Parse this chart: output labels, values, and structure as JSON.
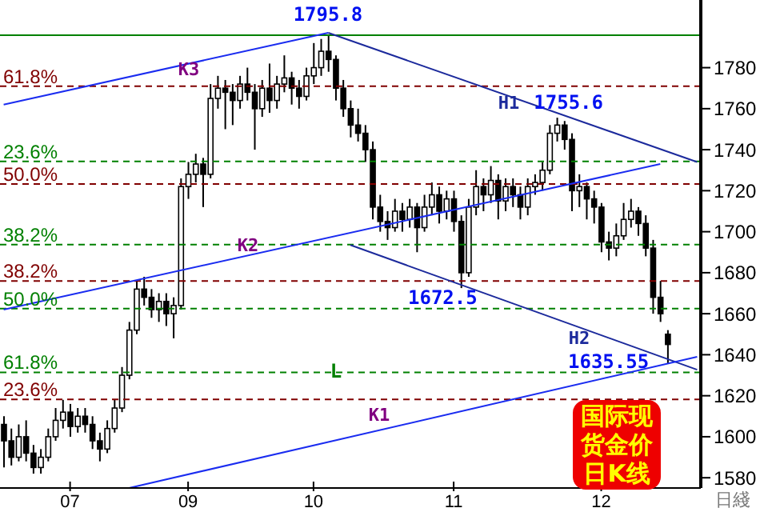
{
  "chart_data": {
    "type": "candlestick",
    "xlabel": "日綫",
    "categories": [
      null,
      null,
      null,
      null,
      null,
      null,
      null,
      null,
      null,
      "07",
      null,
      null,
      null,
      null,
      null,
      null,
      null,
      null,
      null,
      null,
      null,
      null,
      null,
      null,
      null,
      "09",
      null,
      null,
      null,
      null,
      null,
      null,
      null,
      null,
      null,
      null,
      null,
      null,
      null,
      null,
      null,
      null,
      "10",
      null,
      null,
      null,
      null,
      null,
      null,
      null,
      null,
      null,
      null,
      null,
      null,
      null,
      null,
      null,
      null,
      null,
      null,
      "11",
      null,
      null,
      null,
      null,
      null,
      null,
      null,
      null,
      null,
      null,
      null,
      null,
      null,
      null,
      null,
      null,
      null,
      null,
      null,
      "12",
      null,
      null,
      null,
      null,
      null,
      null,
      null,
      null,
      null,
      null,
      null,
      null,
      null
    ],
    "ohlc": [
      [
        1606,
        1610,
        1585,
        1598
      ],
      [
        1598,
        1604,
        1586,
        1590
      ],
      [
        1590,
        1606,
        1588,
        1600
      ],
      [
        1600,
        1608,
        1588,
        1592
      ],
      [
        1592,
        1596,
        1582,
        1585
      ],
      [
        1585,
        1594,
        1582,
        1590
      ],
      [
        1590,
        1604,
        1588,
        1600
      ],
      [
        1600,
        1614,
        1598,
        1608
      ],
      [
        1608,
        1618,
        1604,
        1612
      ],
      [
        1612,
        1616,
        1600,
        1605
      ],
      [
        1605,
        1614,
        1602,
        1610
      ],
      [
        1610,
        1614,
        1602,
        1606
      ],
      [
        1606,
        1610,
        1594,
        1598
      ],
      [
        1598,
        1602,
        1588,
        1594
      ],
      [
        1594,
        1608,
        1592,
        1604
      ],
      [
        1604,
        1618,
        1602,
        1614
      ],
      [
        1614,
        1634,
        1612,
        1630
      ],
      [
        1630,
        1656,
        1628,
        1652
      ],
      [
        1652,
        1676,
        1650,
        1672
      ],
      [
        1672,
        1678,
        1664,
        1668
      ],
      [
        1668,
        1672,
        1658,
        1662
      ],
      [
        1662,
        1670,
        1656,
        1666
      ],
      [
        1666,
        1670,
        1654,
        1660
      ],
      [
        1660,
        1668,
        1648,
        1664
      ],
      [
        1664,
        1726,
        1662,
        1722
      ],
      [
        1722,
        1734,
        1716,
        1728
      ],
      [
        1728,
        1738,
        1724,
        1733
      ],
      [
        1733,
        1736,
        1712,
        1728
      ],
      [
        1728,
        1772,
        1726,
        1765
      ],
      [
        1765,
        1776,
        1760,
        1770
      ],
      [
        1770,
        1774,
        1750,
        1768
      ],
      [
        1768,
        1772,
        1752,
        1764
      ],
      [
        1764,
        1776,
        1760,
        1772
      ],
      [
        1772,
        1780,
        1764,
        1768
      ],
      [
        1768,
        1772,
        1740,
        1760
      ],
      [
        1760,
        1774,
        1756,
        1770
      ],
      [
        1770,
        1782,
        1758,
        1764
      ],
      [
        1764,
        1776,
        1760,
        1772
      ],
      [
        1772,
        1786,
        1768,
        1775
      ],
      [
        1775,
        1778,
        1762,
        1770
      ],
      [
        1770,
        1774,
        1760,
        1766
      ],
      [
        1766,
        1780,
        1764,
        1776
      ],
      [
        1776,
        1792,
        1772,
        1780
      ],
      [
        1780,
        1794,
        1776,
        1788
      ],
      [
        1788,
        1795.8,
        1778,
        1784
      ],
      [
        1784,
        1786,
        1764,
        1770
      ],
      [
        1770,
        1774,
        1756,
        1760
      ],
      [
        1760,
        1764,
        1746,
        1752
      ],
      [
        1752,
        1760,
        1744,
        1748
      ],
      [
        1748,
        1752,
        1734,
        1740
      ],
      [
        1740,
        1744,
        1706,
        1712
      ],
      [
        1712,
        1718,
        1700,
        1705
      ],
      [
        1705,
        1710,
        1696,
        1702
      ],
      [
        1702,
        1716,
        1700,
        1710
      ],
      [
        1710,
        1714,
        1700,
        1706
      ],
      [
        1706,
        1716,
        1702,
        1712
      ],
      [
        1712,
        1714,
        1690,
        1702
      ],
      [
        1702,
        1718,
        1700,
        1712
      ],
      [
        1712,
        1724,
        1708,
        1718
      ],
      [
        1718,
        1722,
        1704,
        1710
      ],
      [
        1710,
        1720,
        1706,
        1716
      ],
      [
        1716,
        1720,
        1700,
        1705
      ],
      [
        1705,
        1708,
        1672.5,
        1680
      ],
      [
        1680,
        1716,
        1678,
        1712
      ],
      [
        1712,
        1730,
        1708,
        1722
      ],
      [
        1722,
        1726,
        1710,
        1718
      ],
      [
        1718,
        1732,
        1714,
        1725
      ],
      [
        1725,
        1728,
        1706,
        1715
      ],
      [
        1715,
        1726,
        1710,
        1722
      ],
      [
        1722,
        1726,
        1712,
        1718
      ],
      [
        1718,
        1722,
        1706,
        1712
      ],
      [
        1712,
        1726,
        1708,
        1722
      ],
      [
        1722,
        1728,
        1718,
        1724
      ],
      [
        1724,
        1734,
        1720,
        1730
      ],
      [
        1730,
        1752,
        1728,
        1748
      ],
      [
        1748,
        1755.6,
        1744,
        1752
      ],
      [
        1752,
        1754,
        1740,
        1745
      ],
      [
        1745,
        1748,
        1710,
        1720
      ],
      [
        1720,
        1728,
        1712,
        1722
      ],
      [
        1722,
        1724,
        1706,
        1716
      ],
      [
        1716,
        1720,
        1704,
        1712
      ],
      [
        1712,
        1714,
        1690,
        1695
      ],
      [
        1695,
        1700,
        1686,
        1692
      ],
      [
        1692,
        1704,
        1688,
        1698
      ],
      [
        1698,
        1714,
        1696,
        1706
      ],
      [
        1706,
        1716,
        1702,
        1710
      ],
      [
        1710,
        1712,
        1698,
        1704
      ],
      [
        1704,
        1708,
        1688,
        1692
      ],
      [
        1692,
        1696,
        1660,
        1668
      ],
      [
        1668,
        1676,
        1656,
        1660
      ],
      [
        1650,
        1652,
        1635.55,
        1645
      ],
      null,
      null,
      null,
      null
    ],
    "series": [
      {
        "name": "K3",
        "type": "line",
        "color": "#1a2cf0",
        "values": [
          1762,
          null,
          null,
          null,
          null,
          null,
          null,
          null,
          null,
          null,
          null,
          null,
          null,
          null,
          null,
          null,
          null,
          null,
          null,
          null,
          null,
          null,
          null,
          null,
          null,
          null,
          null,
          null,
          null,
          null,
          null,
          null,
          null,
          null,
          null,
          null,
          null,
          null,
          null,
          null,
          null,
          null,
          null,
          null,
          1797,
          null,
          null,
          null,
          null,
          null,
          null,
          null,
          null,
          null,
          null,
          null,
          null,
          null,
          null,
          null,
          null,
          null,
          null,
          null,
          null,
          null,
          null,
          null,
          null,
          null,
          null,
          null,
          null,
          null,
          null,
          null,
          null,
          null,
          null,
          null,
          null,
          null,
          null,
          null,
          null,
          null,
          null,
          null,
          null,
          null,
          null,
          null,
          null,
          null,
          null
        ]
      },
      {
        "name": "H1",
        "type": "line",
        "color": "#1c2a9c",
        "values": [
          null,
          null,
          null,
          null,
          null,
          null,
          null,
          null,
          null,
          null,
          null,
          null,
          null,
          null,
          null,
          null,
          null,
          null,
          null,
          null,
          null,
          null,
          null,
          null,
          null,
          null,
          null,
          null,
          null,
          null,
          null,
          null,
          null,
          null,
          null,
          null,
          null,
          null,
          null,
          null,
          null,
          null,
          null,
          null,
          1797,
          null,
          null,
          null,
          null,
          null,
          null,
          null,
          null,
          null,
          null,
          null,
          null,
          null,
          null,
          null,
          null,
          null,
          null,
          null,
          null,
          null,
          null,
          null,
          null,
          null,
          null,
          null,
          null,
          null,
          null,
          null,
          null,
          null,
          null,
          null,
          null,
          null,
          null,
          null,
          null,
          null,
          null,
          null,
          null,
          null,
          null,
          null,
          null,
          null,
          1734
        ]
      },
      {
        "name": "K2",
        "type": "line",
        "color": "#1a2cf0",
        "values": [
          1662,
          null,
          null,
          null,
          null,
          null,
          null,
          null,
          null,
          null,
          null,
          null,
          null,
          null,
          null,
          null,
          null,
          null,
          null,
          null,
          null,
          null,
          null,
          null,
          null,
          null,
          null,
          null,
          null,
          null,
          null,
          null,
          null,
          null,
          null,
          null,
          null,
          null,
          null,
          null,
          null,
          null,
          null,
          null,
          null,
          null,
          null,
          null,
          null,
          null,
          null,
          null,
          null,
          null,
          null,
          null,
          null,
          null,
          null,
          null,
          null,
          null,
          null,
          null,
          null,
          null,
          null,
          null,
          null,
          null,
          null,
          null,
          null,
          null,
          null,
          null,
          null,
          null,
          null,
          null,
          null,
          null,
          null,
          null,
          null,
          null,
          null,
          null,
          null,
          1733,
          null,
          null,
          null,
          null,
          null
        ]
      },
      {
        "name": "H2",
        "type": "line",
        "color": "#1c2a9c",
        "values": [
          null,
          null,
          null,
          null,
          null,
          null,
          null,
          null,
          null,
          null,
          null,
          null,
          null,
          null,
          null,
          null,
          null,
          null,
          null,
          null,
          null,
          null,
          null,
          null,
          null,
          null,
          null,
          null,
          null,
          null,
          null,
          null,
          null,
          null,
          null,
          null,
          null,
          null,
          null,
          null,
          null,
          null,
          null,
          null,
          null,
          null,
          null,
          1693.5,
          null,
          null,
          null,
          null,
          null,
          null,
          null,
          null,
          null,
          null,
          null,
          null,
          null,
          null,
          null,
          null,
          null,
          null,
          null,
          null,
          null,
          null,
          null,
          null,
          null,
          null,
          null,
          null,
          null,
          null,
          null,
          null,
          null,
          null,
          null,
          null,
          null,
          null,
          null,
          null,
          null,
          null,
          null,
          null,
          null,
          null,
          1632.7
        ]
      },
      {
        "name": "K1",
        "type": "line",
        "color": "#1a2cf0",
        "values": [
          null,
          null,
          null,
          null,
          null,
          null,
          null,
          null,
          null,
          null,
          null,
          null,
          null,
          null,
          null,
          null,
          null,
          1575,
          null,
          null,
          null,
          null,
          null,
          null,
          null,
          null,
          null,
          null,
          null,
          null,
          null,
          null,
          null,
          null,
          null,
          null,
          null,
          null,
          null,
          null,
          null,
          null,
          null,
          null,
          null,
          null,
          null,
          null,
          null,
          null,
          null,
          null,
          null,
          null,
          null,
          null,
          null,
          null,
          null,
          null,
          null,
          null,
          null,
          null,
          null,
          null,
          null,
          null,
          null,
          null,
          null,
          null,
          null,
          null,
          null,
          null,
          null,
          null,
          null,
          null,
          null,
          null,
          null,
          null,
          null,
          null,
          null,
          null,
          null,
          null,
          null,
          null,
          null,
          null,
          1639
        ]
      }
    ],
    "ylim": [
      1575,
      1813
    ],
    "yticks": [
      1580,
      1600,
      1620,
      1640,
      1660,
      1680,
      1700,
      1720,
      1740,
      1760,
      1780
    ],
    "ref_lines": [
      {
        "axis": "y",
        "value": 1795.8,
        "label": null,
        "color": "#008000",
        "line_style": "solid"
      },
      {
        "axis": "y",
        "value": 1771,
        "label": null,
        "color": "#800000",
        "line_style": "dashed"
      },
      {
        "axis": "y",
        "value": 1734.3,
        "label": null,
        "color": "#008000",
        "line_style": "dashed"
      },
      {
        "axis": "y",
        "value": 1723.3,
        "label": null,
        "color": "#800000",
        "line_style": "dashed"
      },
      {
        "axis": "y",
        "value": 1693.7,
        "label": null,
        "color": "#008000",
        "line_style": "dashed"
      },
      {
        "axis": "y",
        "value": 1676,
        "label": null,
        "color": "#800000",
        "line_style": "dashed"
      },
      {
        "axis": "y",
        "value": 1662.5,
        "label": null,
        "color": "#008000",
        "line_style": "dashed"
      },
      {
        "axis": "y",
        "value": 1631.4,
        "label": null,
        "color": "#008000",
        "line_style": "dashed"
      },
      {
        "axis": "y",
        "value": 1618.2,
        "label": null,
        "color": "#800000",
        "line_style": "dashed"
      }
    ],
    "annotations": [
      {
        "text": "61.8%",
        "y": 1771
      },
      {
        "text": "23.6%",
        "y": 1734.3
      },
      {
        "text": "50.0%",
        "y": 1723.3
      },
      {
        "text": "38.2%",
        "y": 1693.7
      },
      {
        "text": "38.2%",
        "y": 1676
      },
      {
        "text": "50.0%",
        "y": 1662.5
      },
      {
        "text": "61.8%",
        "y": 1631.4
      },
      {
        "text": "23.6%",
        "y": 1618.2
      },
      "1795.8",
      "1755.6",
      "1672.5",
      "1635.55",
      "L",
      "国际现货金价日K线"
    ]
  }
}
